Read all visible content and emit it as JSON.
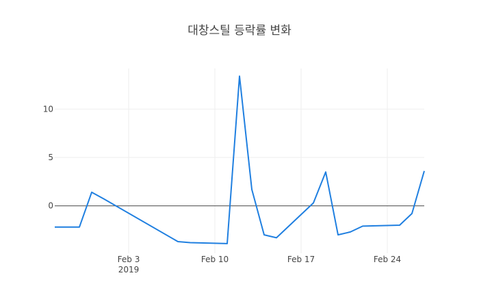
{
  "chart_data": {
    "type": "line",
    "title": "대창스틸 등락률 변화",
    "xlabel": "",
    "ylabel": "",
    "x_range": [
      "2019-01-28",
      "2019-02-27"
    ],
    "ylim": [
      -4.9,
      14.2
    ],
    "y_ticks": [
      0,
      5,
      10
    ],
    "x_ticks": [
      {
        "date": "2019-02-03",
        "label": "Feb 3",
        "sublabel": "2019"
      },
      {
        "date": "2019-02-10",
        "label": "Feb 10",
        "sublabel": ""
      },
      {
        "date": "2019-02-17",
        "label": "Feb 17",
        "sublabel": ""
      },
      {
        "date": "2019-02-24",
        "label": "Feb 24",
        "sublabel": ""
      }
    ],
    "grid": true,
    "zero_line": true,
    "series": [
      {
        "color": "#1f7fe0",
        "x": [
          "2019-01-28",
          "2019-01-29",
          "2019-01-30",
          "2019-01-31",
          "2019-02-01",
          "2019-02-07",
          "2019-02-08",
          "2019-02-11",
          "2019-02-12",
          "2019-02-13",
          "2019-02-14",
          "2019-02-15",
          "2019-02-18",
          "2019-02-19",
          "2019-02-20",
          "2019-02-21",
          "2019-02-22",
          "2019-02-25",
          "2019-02-26",
          "2019-02-27"
        ],
        "y": [
          -2.2,
          -2.2,
          -2.2,
          1.4,
          0.7,
          -3.7,
          -3.8,
          -3.9,
          13.4,
          1.7,
          -3.0,
          -3.3,
          0.3,
          3.5,
          -3.0,
          -2.7,
          -2.1,
          -2.0,
          -0.8,
          3.6
        ]
      }
    ]
  }
}
